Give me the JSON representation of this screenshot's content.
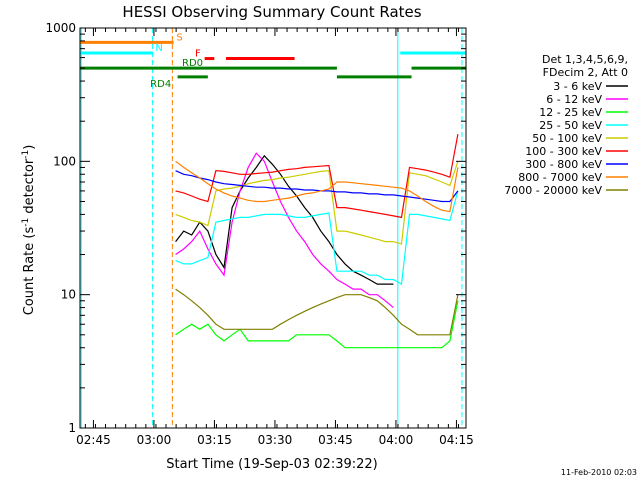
{
  "chart_data": {
    "type": "line",
    "title": "HESSI Observing Summary Count Rates",
    "xlabel": "Start Time (19-Sep-03 02:39:22)",
    "ylabel_main": "Count Rate (s",
    "ylabel_sup1": "-1",
    "ylabel_mid": " detector",
    "ylabel_sup2": "-1",
    "ylabel_end": ")",
    "footer_date": "11-Feb-2010 02:03",
    "xlim_minutes": [
      2.3,
      98
    ],
    "ylim": [
      1,
      1000
    ],
    "y_scale": "log",
    "x_ticks": [
      {
        "label": "02:45",
        "minute": 5.63
      },
      {
        "label": "03:00",
        "minute": 20.63
      },
      {
        "label": "03:15",
        "minute": 35.63
      },
      {
        "label": "03:30",
        "minute": 50.63
      },
      {
        "label": "03:45",
        "minute": 65.63
      },
      {
        "label": "04:00",
        "minute": 80.63
      },
      {
        "label": "04:15",
        "minute": 95.63
      }
    ],
    "y_ticks": [
      {
        "label": "1",
        "value": 1
      },
      {
        "label": "10",
        "value": 10
      },
      {
        "label": "100",
        "value": 100
      },
      {
        "label": "1000",
        "value": 1000
      }
    ],
    "legend_header": [
      "Det 1,3,4,5,6,9,",
      "FDecim 2, Att 0"
    ],
    "series": [
      {
        "name": "3 - 6 keV",
        "color": "#000000",
        "x": [
          26,
          28,
          30,
          32,
          34,
          36,
          38,
          40,
          42,
          44,
          46,
          48,
          50,
          52,
          54,
          56,
          58,
          60,
          62,
          64,
          66,
          68,
          70,
          72,
          74,
          76,
          78,
          80
        ],
        "values": [
          25,
          30,
          28,
          35,
          30,
          20,
          16,
          45,
          60,
          75,
          90,
          110,
          95,
          80,
          65,
          55,
          45,
          38,
          30,
          25,
          20,
          17,
          15,
          14,
          13,
          12,
          12,
          12
        ]
      },
      {
        "name": "6 - 12 keV",
        "color": "#ff00ff",
        "x": [
          26,
          28,
          30,
          32,
          34,
          36,
          38,
          40,
          42,
          44,
          46,
          48,
          50,
          52,
          54,
          56,
          58,
          60,
          62,
          64,
          66,
          68,
          70,
          72,
          74,
          76,
          78,
          80
        ],
        "values": [
          20,
          22,
          25,
          30,
          22,
          17,
          14,
          35,
          60,
          90,
          115,
          100,
          70,
          50,
          38,
          30,
          25,
          20,
          17,
          15,
          13,
          12,
          11,
          11,
          10,
          10,
          9,
          8
        ]
      },
      {
        "name": "12 - 25 keV",
        "color": "#00ff00",
        "x": [
          26,
          28,
          30,
          32,
          34,
          36,
          38,
          40,
          42,
          44,
          46,
          48,
          50,
          52,
          54,
          56,
          58,
          60,
          62,
          64,
          66,
          68,
          70,
          72,
          74,
          76,
          78,
          80,
          82,
          84,
          86,
          88,
          90,
          92,
          94,
          96
        ],
        "values": [
          5,
          5.5,
          6,
          5.5,
          6,
          5,
          4.5,
          5,
          5.5,
          4.5,
          4.5,
          4.5,
          4.5,
          4.5,
          4.5,
          5,
          5,
          5,
          5,
          5,
          4.5,
          4,
          4,
          4,
          4,
          4,
          4,
          4,
          4,
          4,
          4,
          4,
          4,
          4,
          4.5,
          9
        ]
      },
      {
        "name": "25 - 50 keV",
        "color": "#00ffff",
        "x": [
          26,
          28,
          30,
          32,
          34,
          36,
          38,
          40,
          42,
          44,
          46,
          48,
          50,
          52,
          54,
          56,
          58,
          60,
          62,
          64,
          66,
          68,
          70,
          72,
          74,
          76,
          78,
          80,
          82,
          84,
          86,
          88,
          90,
          92,
          94,
          96
        ],
        "values": [
          18,
          17,
          17,
          18,
          19,
          35,
          36,
          37,
          38,
          38,
          39,
          40,
          40,
          40,
          39,
          38,
          38,
          39,
          40,
          41,
          15,
          15,
          15,
          15,
          14,
          14,
          13,
          13,
          12,
          40,
          40,
          39,
          38,
          37,
          36,
          60
        ]
      },
      {
        "name": "50 - 100 keV",
        "color": "#cccc00",
        "x": [
          26,
          28,
          30,
          32,
          34,
          36,
          38,
          40,
          42,
          44,
          46,
          48,
          50,
          52,
          54,
          56,
          58,
          60,
          62,
          64,
          66,
          68,
          70,
          72,
          74,
          76,
          78,
          80,
          82,
          84,
          86,
          88,
          90,
          92,
          94,
          96
        ],
        "values": [
          40,
          38,
          36,
          35,
          33,
          60,
          62,
          63,
          65,
          68,
          70,
          72,
          73,
          75,
          76,
          78,
          80,
          82,
          84,
          85,
          30,
          30,
          29,
          28,
          27,
          26,
          25,
          25,
          24,
          82,
          80,
          78,
          74,
          70,
          66,
          100
        ]
      },
      {
        "name": "100 - 300 keV",
        "color": "#ff0000",
        "x": [
          26,
          28,
          30,
          32,
          34,
          36,
          38,
          40,
          42,
          44,
          46,
          48,
          50,
          52,
          54,
          56,
          58,
          60,
          62,
          64,
          66,
          68,
          70,
          72,
          74,
          76,
          78,
          80,
          82,
          84,
          86,
          88,
          90,
          92,
          94,
          96
        ],
        "values": [
          60,
          58,
          55,
          52,
          50,
          85,
          84,
          82,
          80,
          80,
          81,
          82,
          83,
          85,
          87,
          88,
          90,
          91,
          92,
          93,
          45,
          45,
          44,
          43,
          42,
          41,
          40,
          39,
          38,
          90,
          88,
          86,
          83,
          80,
          76,
          160
        ]
      },
      {
        "name": "300 - 800 keV",
        "color": "#0000ff",
        "x": [
          26,
          28,
          30,
          32,
          34,
          36,
          38,
          40,
          42,
          44,
          46,
          48,
          50,
          52,
          54,
          56,
          58,
          60,
          62,
          64,
          66,
          68,
          70,
          72,
          74,
          76,
          78,
          80,
          82,
          84,
          86,
          88,
          90,
          92,
          94,
          96
        ],
        "values": [
          85,
          80,
          78,
          75,
          73,
          70,
          68,
          67,
          66,
          65,
          64,
          64,
          63,
          63,
          62,
          62,
          61,
          61,
          60,
          60,
          59,
          59,
          58,
          58,
          57,
          57,
          56,
          56,
          55,
          54,
          53,
          52,
          51,
          50,
          50,
          60
        ]
      },
      {
        "name": "800 - 7000 keV",
        "color": "#ff8000",
        "x": [
          26,
          28,
          30,
          32,
          34,
          36,
          38,
          40,
          42,
          44,
          46,
          48,
          50,
          52,
          54,
          56,
          58,
          60,
          62,
          64,
          66,
          68,
          70,
          72,
          74,
          76,
          78,
          80,
          82,
          84,
          86,
          88,
          90,
          92,
          94,
          96
        ],
        "values": [
          100,
          90,
          82,
          75,
          68,
          62,
          58,
          55,
          53,
          51,
          50,
          50,
          51,
          52,
          53,
          55,
          57,
          58,
          60,
          62,
          70,
          70,
          69,
          68,
          67,
          66,
          65,
          64,
          63,
          60,
          55,
          50,
          46,
          43,
          42,
          90
        ]
      },
      {
        "name": "7000 - 20000 keV",
        "color": "#808000",
        "x": [
          26,
          28,
          30,
          32,
          34,
          36,
          38,
          40,
          42,
          44,
          46,
          48,
          50,
          52,
          54,
          56,
          58,
          60,
          62,
          64,
          66,
          68,
          70,
          72,
          74,
          76,
          78,
          80,
          82,
          84,
          86,
          88,
          90,
          92,
          94,
          96
        ],
        "values": [
          11,
          10,
          9,
          8,
          7,
          6,
          5.5,
          5.5,
          5.5,
          5.5,
          5.5,
          5.5,
          5.5,
          6,
          6.5,
          7,
          7.5,
          8,
          8.5,
          9,
          9.5,
          10,
          10,
          10,
          9.5,
          9,
          8,
          7,
          6,
          5.5,
          5,
          5,
          5,
          5,
          5,
          10
        ]
      }
    ],
    "overlay_bars": [
      {
        "label": "S",
        "color": "#ff8000",
        "x": [
          2.3,
          25.5
        ],
        "y": 780,
        "label_minute": 26.2
      },
      {
        "label": "N",
        "color": "#00ffff",
        "x": [
          2.3,
          20.3
        ],
        "y": 650,
        "label_minute": 21.0
      },
      {
        "label": "N",
        "color": "#00ffff",
        "x": [
          81.7,
          98
        ],
        "y": 650,
        "label_minute": null
      },
      {
        "label": "F",
        "color": "#ff0000",
        "x": [
          33.2,
          35.6
        ],
        "y": 590,
        "label_minute": 30.8
      },
      {
        "label": "",
        "color": "#ff0000",
        "x": [
          38.5,
          55.5
        ],
        "y": 590,
        "label_minute": null
      },
      {
        "label": "RD0",
        "color": "#008000",
        "x": [
          2.3,
          66
        ],
        "y": 500,
        "label_minute": 27.6
      },
      {
        "label": "",
        "color": "#008000",
        "x": [
          66,
          84.5
        ],
        "y": 430,
        "label_minute": null
      },
      {
        "label": "",
        "color": "#008000",
        "x": [
          84.5,
          98
        ],
        "y": 500,
        "label_minute": null
      },
      {
        "label": "RD4",
        "color": "#008000",
        "x": [
          26.5,
          34
        ],
        "y": 430,
        "label_minute": 19.7
      }
    ],
    "vlines": [
      {
        "minute": 2.6,
        "color": "#00ffff",
        "dashed": false
      },
      {
        "minute": 20.3,
        "color": "#00ffff",
        "dashed": true
      },
      {
        "minute": 25.2,
        "color": "#ff8000",
        "dashed": true
      },
      {
        "minute": 81.1,
        "color": "#00ffff",
        "dashed": false
      },
      {
        "minute": 97.0,
        "color": "#00ffff",
        "dashed": true
      }
    ]
  }
}
